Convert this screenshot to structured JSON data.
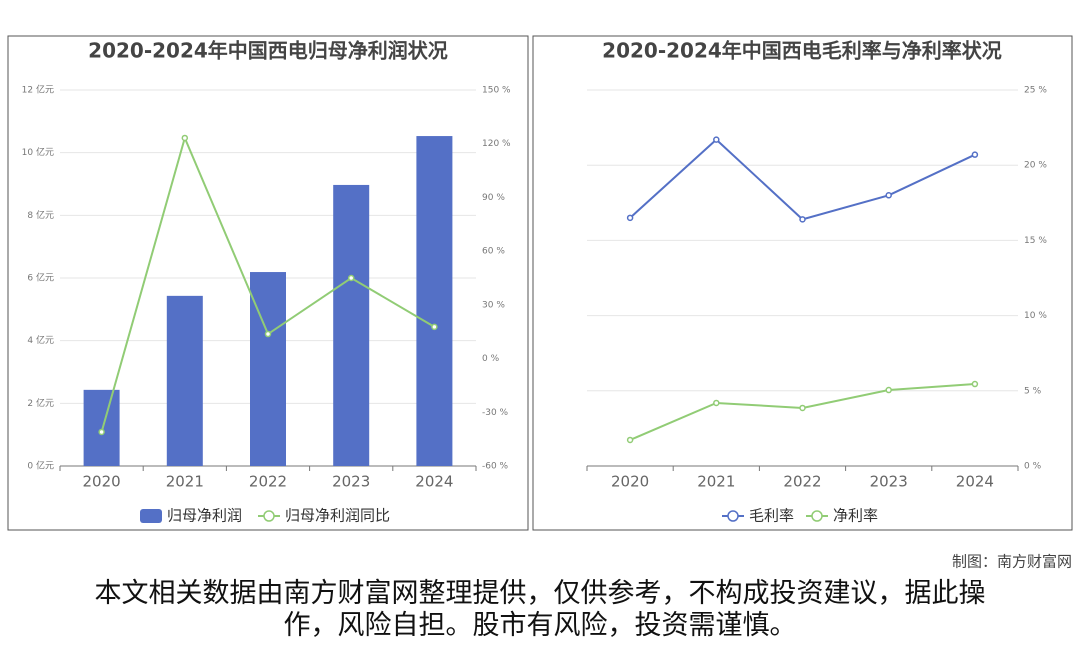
{
  "chart_data": [
    {
      "type": "bar",
      "title": "2020-2024年中国西电归母净利润状况",
      "categories": [
        "2020",
        "2021",
        "2022",
        "2023",
        "2024"
      ],
      "series": [
        {
          "name": "归母净利润",
          "type": "bar",
          "color": "#5470c6",
          "values": [
            2.43,
            5.43,
            6.19,
            8.97,
            10.53
          ]
        },
        {
          "name": "归母净利润同比",
          "type": "line",
          "axis": "y2",
          "color": "#91cc75",
          "values": [
            -41,
            123.2,
            13.7,
            45,
            17.7
          ]
        }
      ],
      "ylim": [
        0,
        12
      ],
      "yticks": [
        {
          "value": 0,
          "label": "0 亿元"
        },
        {
          "value": 2,
          "label": "2 亿元"
        },
        {
          "value": 4,
          "label": "4 亿元"
        },
        {
          "value": 6,
          "label": "6 亿元"
        },
        {
          "value": 8,
          "label": "8 亿元"
        },
        {
          "value": 10,
          "label": "10 亿元"
        },
        {
          "value": 12,
          "label": "12 亿元"
        }
      ],
      "y2lim": [
        -60,
        150
      ],
      "y2ticks": [
        {
          "value": -60,
          "label": "-60 %"
        },
        {
          "value": -30,
          "label": "-30 %"
        },
        {
          "value": 0,
          "label": "0 %"
        },
        {
          "value": 30,
          "label": "30 %"
        },
        {
          "value": 60,
          "label": "60 %"
        },
        {
          "value": 90,
          "label": "90 %"
        },
        {
          "value": 120,
          "label": "120 %"
        },
        {
          "value": 150,
          "label": "150 %"
        }
      ],
      "grid": true
    },
    {
      "type": "line",
      "title": "2020-2024年中国西电毛利率与净利率状况",
      "categories": [
        "2020",
        "2021",
        "2022",
        "2023",
        "2024"
      ],
      "series": [
        {
          "name": "毛利率",
          "type": "line",
          "axis": "y2",
          "color": "#5470c6",
          "values": [
            16.5,
            21.7,
            16.4,
            18.0,
            20.7
          ]
        },
        {
          "name": "净利率",
          "type": "line",
          "axis": "y2",
          "color": "#91cc75",
          "values": [
            1.73,
            4.19,
            3.86,
            5.05,
            5.45
          ]
        }
      ],
      "y2lim": [
        0,
        25
      ],
      "y2ticks": [
        {
          "value": 0,
          "label": "0 %"
        },
        {
          "value": 5,
          "label": "5 %"
        },
        {
          "value": 10,
          "label": "10 %"
        },
        {
          "value": 15,
          "label": "15 %"
        },
        {
          "value": 20,
          "label": "20 %"
        },
        {
          "value": 25,
          "label": "25 %"
        }
      ],
      "grid": true
    }
  ],
  "credit": "制图：南方财富网",
  "disclaimer": "本文相关数据由南方财富网整理提供，仅供参考，不构成投资建议，据此操作，风险自担。股市有风险，投资需谨慎。"
}
